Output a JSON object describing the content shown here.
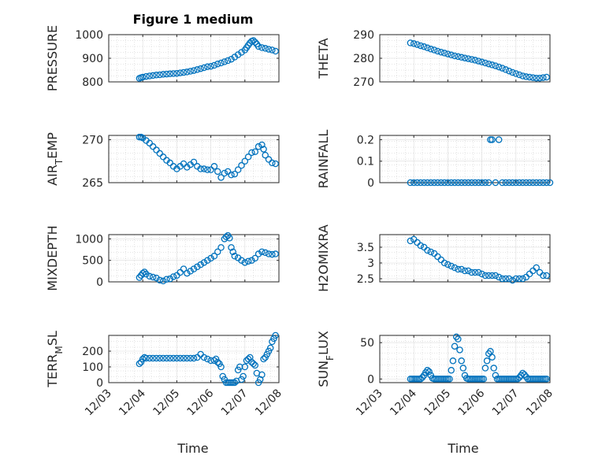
{
  "figure": {
    "title": "Figure 1 medium",
    "xlabel": "Time",
    "marker_color": "#0072BD"
  },
  "chart_data": [
    {
      "type": "scatter",
      "ylabel": "PRESSURE",
      "ylabel_sub": "",
      "ylabel_tail": "",
      "xlim": [
        0,
        5
      ],
      "ylim": [
        800,
        1000
      ],
      "yticks": [
        800,
        900,
        1000
      ],
      "ytick_labels": [
        "800",
        "900",
        "1000"
      ],
      "xticks": [
        0,
        1,
        2,
        3,
        4,
        5
      ],
      "xtick_labels": [],
      "grid": true,
      "x": [
        0.9,
        0.95,
        1.0,
        1.1,
        1.2,
        1.3,
        1.4,
        1.5,
        1.6,
        1.7,
        1.8,
        1.9,
        2.0,
        2.1,
        2.2,
        2.3,
        2.4,
        2.5,
        2.6,
        2.7,
        2.8,
        2.9,
        3.0,
        3.1,
        3.2,
        3.3,
        3.4,
        3.5,
        3.6,
        3.7,
        3.8,
        3.9,
        4.0,
        4.05,
        4.1,
        4.15,
        4.2,
        4.25,
        4.3,
        4.35,
        4.4,
        4.5,
        4.6,
        4.7,
        4.8,
        4.9
      ],
      "y": [
        815,
        818,
        820,
        823,
        825,
        827,
        829,
        830,
        832,
        833,
        834,
        835,
        836,
        838,
        840,
        842,
        845,
        848,
        852,
        856,
        860,
        864,
        866,
        870,
        876,
        880,
        885,
        890,
        896,
        905,
        915,
        925,
        935,
        945,
        955,
        965,
        972,
        975,
        968,
        960,
        950,
        945,
        942,
        938,
        935,
        930
      ]
    },
    {
      "type": "scatter",
      "ylabel": "THETA",
      "ylabel_sub": "",
      "ylabel_tail": "",
      "xlim": [
        0,
        5
      ],
      "ylim": [
        270,
        290
      ],
      "yticks": [
        270,
        280,
        290
      ],
      "ytick_labels": [
        "270",
        "280",
        "290"
      ],
      "xticks": [
        0,
        1,
        2,
        3,
        4,
        5
      ],
      "xtick_labels": [],
      "grid": true,
      "x": [
        0.9,
        1.0,
        1.1,
        1.2,
        1.3,
        1.4,
        1.5,
        1.6,
        1.7,
        1.8,
        1.9,
        2.0,
        2.1,
        2.2,
        2.3,
        2.4,
        2.5,
        2.6,
        2.7,
        2.8,
        2.9,
        3.0,
        3.1,
        3.2,
        3.3,
        3.4,
        3.5,
        3.6,
        3.7,
        3.8,
        3.9,
        4.0,
        4.1,
        4.2,
        4.3,
        4.4,
        4.5,
        4.6,
        4.7,
        4.8,
        4.9
      ],
      "y": [
        286.5,
        286.2,
        285.8,
        285.3,
        284.9,
        284.4,
        283.9,
        283.5,
        283.0,
        282.6,
        282.2,
        281.8,
        281.4,
        281.0,
        280.7,
        280.4,
        280.1,
        279.8,
        279.5,
        279.2,
        278.8,
        278.4,
        278.0,
        277.6,
        277.2,
        276.8,
        276.3,
        275.8,
        275.2,
        274.6,
        274.0,
        273.5,
        273.0,
        272.5,
        272.2,
        272.0,
        271.8,
        271.6,
        271.6,
        271.8,
        272.0
      ]
    },
    {
      "type": "scatter",
      "ylabel": "AIR",
      "ylabel_sub": "T",
      "ylabel_tail": "EMP",
      "xlim": [
        0,
        5
      ],
      "ylim": [
        265,
        270.5
      ],
      "yticks": [
        265,
        270
      ],
      "ytick_labels": [
        "265",
        "270"
      ],
      "xticks": [
        0,
        1,
        2,
        3,
        4,
        5
      ],
      "xtick_labels": [],
      "grid": true,
      "x": [
        0.9,
        0.95,
        1.0,
        1.1,
        1.2,
        1.3,
        1.4,
        1.5,
        1.6,
        1.7,
        1.8,
        1.9,
        2.0,
        2.1,
        2.2,
        2.3,
        2.4,
        2.5,
        2.6,
        2.7,
        2.8,
        2.9,
        3.0,
        3.1,
        3.2,
        3.3,
        3.4,
        3.5,
        3.6,
        3.7,
        3.8,
        3.9,
        4.0,
        4.1,
        4.2,
        4.3,
        4.4,
        4.5,
        4.55,
        4.6,
        4.7,
        4.8,
        4.9
      ],
      "y": [
        270.3,
        270.3,
        270.2,
        269.9,
        269.6,
        269.2,
        268.8,
        268.4,
        268.0,
        267.6,
        267.3,
        266.9,
        266.6,
        266.9,
        267.2,
        266.8,
        267.1,
        267.4,
        266.9,
        266.6,
        266.6,
        266.5,
        266.5,
        266.9,
        266.3,
        265.6,
        266.1,
        266.3,
        265.9,
        266.0,
        266.5,
        267.0,
        267.5,
        268.0,
        268.5,
        268.6,
        269.2,
        269.4,
        268.9,
        268.2,
        267.7,
        267.3,
        267.2
      ]
    },
    {
      "type": "scatter",
      "ylabel": "RAINFALL",
      "ylabel_sub": "",
      "ylabel_tail": "",
      "xlim": [
        0,
        5
      ],
      "ylim": [
        0,
        0.22
      ],
      "yticks": [
        0,
        0.1,
        0.2
      ],
      "ytick_labels": [
        "0",
        "0.1",
        "0.2"
      ],
      "xticks": [
        0,
        1,
        2,
        3,
        4,
        5
      ],
      "xtick_labels": [],
      "grid": true,
      "x": [
        0.9,
        1.0,
        1.1,
        1.2,
        1.3,
        1.4,
        1.5,
        1.6,
        1.7,
        1.8,
        1.9,
        2.0,
        2.1,
        2.2,
        2.3,
        2.4,
        2.5,
        2.6,
        2.7,
        2.8,
        2.9,
        3.0,
        3.1,
        3.2,
        3.25,
        3.3,
        3.4,
        3.5,
        3.6,
        3.7,
        3.8,
        3.9,
        4.0,
        4.1,
        4.2,
        4.3,
        4.4,
        4.5,
        4.6,
        4.7,
        4.8,
        4.9,
        5.0
      ],
      "y": [
        0,
        0,
        0,
        0,
        0,
        0,
        0,
        0,
        0,
        0,
        0,
        0,
        0,
        0,
        0,
        0,
        0,
        0,
        0,
        0,
        0,
        0,
        0,
        0,
        0.2,
        0.2,
        0,
        0.2,
        0,
        0,
        0,
        0,
        0,
        0,
        0,
        0,
        0,
        0,
        0,
        0,
        0,
        0,
        0
      ]
    },
    {
      "type": "scatter",
      "ylabel": "MIXDEPTH",
      "ylabel_sub": "",
      "ylabel_tail": "",
      "xlim": [
        0,
        5
      ],
      "ylim": [
        0,
        1100
      ],
      "yticks": [
        0,
        500,
        1000
      ],
      "ytick_labels": [
        "0",
        "500",
        "1000"
      ],
      "xticks": [
        0,
        1,
        2,
        3,
        4,
        5
      ],
      "xtick_labels": [],
      "grid": true,
      "x": [
        0.9,
        0.95,
        1.0,
        1.05,
        1.1,
        1.2,
        1.3,
        1.4,
        1.5,
        1.6,
        1.7,
        1.8,
        1.9,
        2.0,
        2.1,
        2.2,
        2.3,
        2.4,
        2.5,
        2.6,
        2.7,
        2.8,
        2.9,
        3.0,
        3.1,
        3.2,
        3.3,
        3.4,
        3.45,
        3.5,
        3.55,
        3.6,
        3.65,
        3.7,
        3.8,
        3.9,
        4.0,
        4.1,
        4.2,
        4.3,
        4.4,
        4.5,
        4.6,
        4.7,
        4.8,
        4.9
      ],
      "y": [
        100,
        150,
        200,
        230,
        180,
        130,
        110,
        90,
        40,
        20,
        60,
        70,
        120,
        150,
        220,
        300,
        200,
        250,
        300,
        350,
        400,
        450,
        500,
        550,
        600,
        700,
        800,
        1000,
        1050,
        1080,
        1020,
        800,
        700,
        600,
        560,
        500,
        450,
        480,
        500,
        550,
        650,
        700,
        680,
        650,
        640,
        650
      ]
    },
    {
      "type": "scatter",
      "ylabel": "H2OMIXRA",
      "ylabel_sub": "",
      "ylabel_tail": "",
      "xlim": [
        0,
        5
      ],
      "ylim": [
        2.4,
        3.9
      ],
      "yticks": [
        2.5,
        3,
        3.5
      ],
      "ytick_labels": [
        "2.5",
        "3",
        "3.5"
      ],
      "xticks": [
        0,
        1,
        2,
        3,
        4,
        5
      ],
      "xtick_labels": [],
      "grid": true,
      "x": [
        0.9,
        1.0,
        1.1,
        1.2,
        1.3,
        1.4,
        1.5,
        1.6,
        1.7,
        1.8,
        1.9,
        2.0,
        2.1,
        2.2,
        2.3,
        2.4,
        2.5,
        2.6,
        2.7,
        2.8,
        2.9,
        3.0,
        3.1,
        3.2,
        3.3,
        3.4,
        3.5,
        3.6,
        3.7,
        3.8,
        3.9,
        4.0,
        4.1,
        4.2,
        4.3,
        4.4,
        4.5,
        4.6,
        4.7,
        4.8,
        4.9
      ],
      "y": [
        3.7,
        3.75,
        3.65,
        3.55,
        3.5,
        3.4,
        3.35,
        3.3,
        3.2,
        3.1,
        3.0,
        2.95,
        2.9,
        2.85,
        2.8,
        2.8,
        2.75,
        2.75,
        2.7,
        2.7,
        2.7,
        2.65,
        2.6,
        2.6,
        2.6,
        2.6,
        2.55,
        2.5,
        2.5,
        2.5,
        2.45,
        2.5,
        2.5,
        2.5,
        2.55,
        2.65,
        2.75,
        2.85,
        2.7,
        2.6,
        2.6
      ]
    },
    {
      "type": "scatter",
      "ylabel": "TERR",
      "ylabel_sub": "M",
      "ylabel_tail": "SL",
      "xlim": [
        0,
        5
      ],
      "ylim": [
        0,
        300
      ],
      "yticks": [
        0,
        100,
        200
      ],
      "ytick_labels": [
        "0",
        "100",
        "200"
      ],
      "xticks": [
        0,
        1,
        2,
        3,
        4,
        5
      ],
      "xtick_labels": [
        "12/03",
        "12/04",
        "12/05",
        "12/06",
        "12/07",
        "12/08"
      ],
      "grid": true,
      "x": [
        0.9,
        0.95,
        1.0,
        1.05,
        1.1,
        1.2,
        1.3,
        1.4,
        1.5,
        1.6,
        1.7,
        1.8,
        1.9,
        2.0,
        2.1,
        2.2,
        2.3,
        2.4,
        2.5,
        2.6,
        2.7,
        2.8,
        2.9,
        3.0,
        3.1,
        3.15,
        3.2,
        3.25,
        3.3,
        3.35,
        3.4,
        3.45,
        3.5,
        3.55,
        3.6,
        3.65,
        3.7,
        3.75,
        3.8,
        3.85,
        3.9,
        3.95,
        4.0,
        4.05,
        4.1,
        4.15,
        4.2,
        4.25,
        4.3,
        4.35,
        4.4,
        4.45,
        4.5,
        4.55,
        4.6,
        4.65,
        4.7,
        4.75,
        4.8,
        4.85,
        4.9
      ],
      "y": [
        120,
        130,
        150,
        160,
        155,
        155,
        155,
        155,
        155,
        155,
        155,
        155,
        155,
        155,
        155,
        155,
        155,
        155,
        155,
        160,
        180,
        160,
        150,
        140,
        140,
        150,
        130,
        120,
        100,
        40,
        20,
        0,
        0,
        0,
        0,
        0,
        0,
        10,
        80,
        100,
        20,
        40,
        100,
        140,
        150,
        160,
        130,
        120,
        110,
        60,
        0,
        20,
        50,
        150,
        160,
        180,
        200,
        220,
        260,
        280,
        300
      ]
    },
    {
      "type": "scatter",
      "ylabel": "SUN",
      "ylabel_sub": "F",
      "ylabel_tail": "LUX",
      "xlim": [
        0,
        5
      ],
      "ylim": [
        -5,
        60
      ],
      "yticks": [
        0,
        50
      ],
      "ytick_labels": [
        "0",
        "50"
      ],
      "xticks": [
        0,
        1,
        2,
        3,
        4,
        5
      ],
      "xtick_labels": [
        "12/03",
        "12/04",
        "12/05",
        "12/06",
        "12/07",
        "12/08"
      ],
      "grid": true,
      "x": [
        0.9,
        0.95,
        1.0,
        1.05,
        1.1,
        1.15,
        1.2,
        1.25,
        1.3,
        1.35,
        1.4,
        1.45,
        1.5,
        1.55,
        1.6,
        1.65,
        1.7,
        1.75,
        1.8,
        1.85,
        1.9,
        1.95,
        2.0,
        2.05,
        2.1,
        2.15,
        2.2,
        2.25,
        2.3,
        2.35,
        2.4,
        2.45,
        2.5,
        2.55,
        2.6,
        2.65,
        2.7,
        2.75,
        2.8,
        2.85,
        2.9,
        2.95,
        3.0,
        3.05,
        3.1,
        3.15,
        3.2,
        3.25,
        3.3,
        3.35,
        3.4,
        3.45,
        3.5,
        3.55,
        3.6,
        3.65,
        3.7,
        3.75,
        3.8,
        3.85,
        3.9,
        3.95,
        4.0,
        4.05,
        4.1,
        4.15,
        4.2,
        4.25,
        4.3,
        4.35,
        4.4,
        4.45,
        4.5,
        4.55,
        4.6,
        4.65,
        4.7,
        4.75,
        4.8,
        4.85,
        4.9
      ],
      "y": [
        0,
        0,
        0,
        0,
        0,
        0,
        0,
        2,
        5,
        9,
        12,
        10,
        5,
        1,
        0,
        0,
        0,
        0,
        0,
        0,
        0,
        0,
        0,
        0,
        12,
        25,
        45,
        58,
        55,
        40,
        25,
        15,
        5,
        1,
        0,
        0,
        0,
        0,
        0,
        0,
        0,
        0,
        0,
        0,
        15,
        25,
        35,
        38,
        30,
        15,
        5,
        0,
        0,
        0,
        0,
        0,
        0,
        0,
        0,
        0,
        0,
        0,
        0,
        0,
        2,
        5,
        8,
        6,
        3,
        0,
        0,
        0,
        0,
        0,
        0,
        0,
        0,
        0,
        0,
        0,
        0
      ]
    }
  ]
}
